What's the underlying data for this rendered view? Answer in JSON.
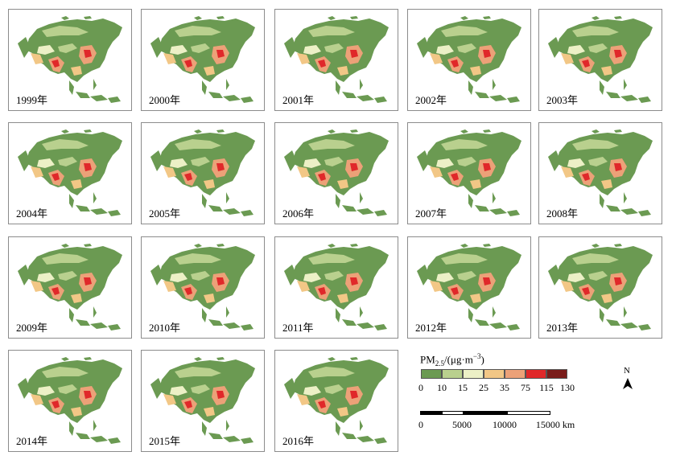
{
  "panels": [
    {
      "year_label": "1999年"
    },
    {
      "year_label": "2000年"
    },
    {
      "year_label": "2001年"
    },
    {
      "year_label": "2002年"
    },
    {
      "year_label": "2003年"
    },
    {
      "year_label": "2004年"
    },
    {
      "year_label": "2005年"
    },
    {
      "year_label": "2006年"
    },
    {
      "year_label": "2007年"
    },
    {
      "year_label": "2008年"
    },
    {
      "year_label": "2009年"
    },
    {
      "year_label": "2010年"
    },
    {
      "year_label": "2011年"
    },
    {
      "year_label": "2012年"
    },
    {
      "year_label": "2013年"
    },
    {
      "year_label": "2014年"
    },
    {
      "year_label": "2015年"
    },
    {
      "year_label": "2016年"
    }
  ],
  "legend": {
    "title_main": "PM",
    "title_sub": "2.5",
    "title_unit_start": "/(μg·m",
    "title_sup": "−3",
    "title_unit_end": ")",
    "ticks": [
      "0",
      "10",
      "15",
      "25",
      "35",
      "75",
      "115",
      "130"
    ],
    "colors": [
      "#6b9a52",
      "#b9d08e",
      "#ecf0c6",
      "#f2c786",
      "#eca178",
      "#e0282a",
      "#7a1c1a"
    ]
  },
  "scale_bar": {
    "labels": [
      "0",
      "5000",
      "10000",
      "15000 km"
    ]
  },
  "north_arrow": {
    "label": "N"
  }
}
